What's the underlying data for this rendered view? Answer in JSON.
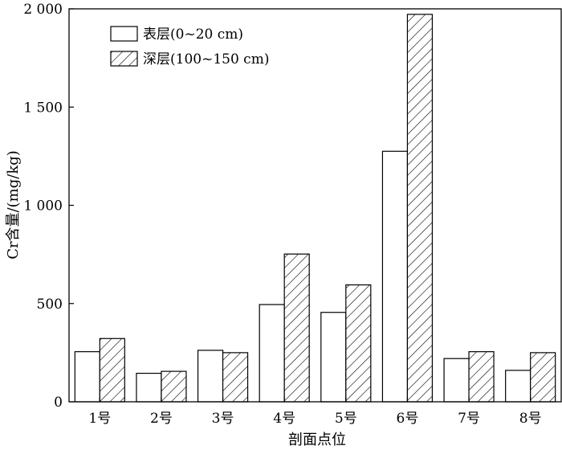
{
  "chart_data": {
    "type": "bar",
    "xlabel": "剖面点位",
    "ylabel": "Cr含量/(mg/kg)",
    "ylim": [
      0,
      2000
    ],
    "yticks": [
      0,
      500,
      1000,
      1500,
      2000
    ],
    "ytick_labels": [
      "0",
      "500",
      "1 000",
      "1 500",
      "2 000"
    ],
    "categories": [
      "1号",
      "2号",
      "3号",
      "4号",
      "5号",
      "6号",
      "7号",
      "8号"
    ],
    "series": [
      {
        "name": "表层(0~20 cm)",
        "pattern": "solid-white",
        "values": [
          255,
          145,
          262,
          495,
          455,
          1275,
          220,
          160
        ]
      },
      {
        "name": "深层(100~150 cm)",
        "pattern": "diagonal-hatch",
        "values": [
          322,
          155,
          250,
          752,
          595,
          1972,
          255,
          250
        ]
      }
    ],
    "legend_position": "top-left",
    "grid": false
  }
}
